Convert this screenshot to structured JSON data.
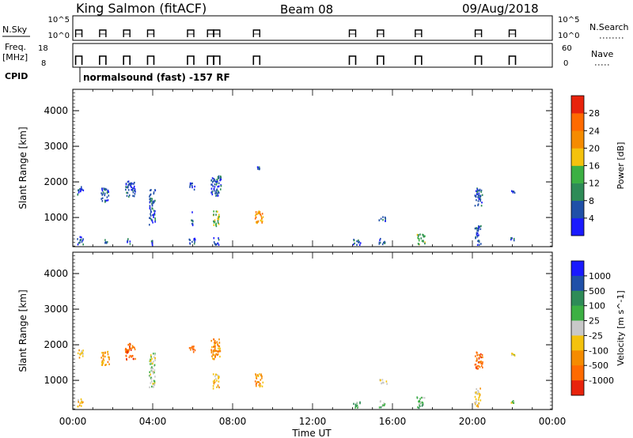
{
  "header": {
    "station": "King Salmon (fitACF)",
    "beam": "Beam 08",
    "date": "09/Aug/2018"
  },
  "sky_panel": {
    "left_label": "N.Sky",
    "left_ticks": [
      "10^5",
      "10^0"
    ],
    "right_label": "N.Search",
    "right_ticks": [
      "10^5",
      "10^0"
    ],
    "bursts_hours": [
      0.3,
      1.5,
      2.7,
      3.9,
      5.9,
      6.9,
      7.2,
      9.2,
      14.0,
      15.4,
      17.3,
      20.3,
      22.0
    ]
  },
  "freq_panel": {
    "left_label_1": "Freq.",
    "left_label_2": "[MHz]",
    "left_ticks": [
      "18",
      "8"
    ],
    "right_label": "Nave",
    "right_ticks": [
      "60",
      "0"
    ]
  },
  "cpid": {
    "label": "CPID",
    "text": "normalsound (fast) -157 RF"
  },
  "time_axis": {
    "label": "Time UT",
    "ticks": [
      "00:00",
      "04:00",
      "08:00",
      "12:00",
      "16:00",
      "20:00",
      "00:00"
    ],
    "range_hours": [
      0,
      24
    ]
  },
  "chart_data": [
    {
      "type": "heatmap",
      "title": "",
      "xlabel": "Time UT",
      "ylabel": "Slant Range [km]",
      "xlim_hours": [
        0,
        24
      ],
      "ylim_km": [
        180,
        4600
      ],
      "yticks": [
        "1000",
        "2000",
        "3000",
        "4000"
      ],
      "colorbar": {
        "label": "Power [dB]",
        "ticks": [
          "4",
          "8",
          "12",
          "16",
          "20",
          "24",
          "28"
        ],
        "colors": [
          "#1a1aff",
          "#2050a8",
          "#2e8b57",
          "#3cb043",
          "#f4c20d",
          "#f58b00",
          "#ff6a00",
          "#e8230c"
        ]
      },
      "clusters": [
        {
          "t0": 0.2,
          "t1": 0.5,
          "r0": 1650,
          "r1": 1900,
          "level": 1
        },
        {
          "t0": 0.2,
          "t1": 0.5,
          "r0": 250,
          "r1": 500,
          "level": 1
        },
        {
          "t0": 1.4,
          "t1": 1.8,
          "r0": 1450,
          "r1": 1850,
          "level": 1
        },
        {
          "t0": 1.5,
          "t1": 1.7,
          "r0": 300,
          "r1": 400,
          "level": 1
        },
        {
          "t0": 2.6,
          "t1": 3.1,
          "r0": 1600,
          "r1": 2050,
          "level": 1
        },
        {
          "t0": 2.7,
          "t1": 2.9,
          "r0": 280,
          "r1": 420,
          "level": 1
        },
        {
          "t0": 3.8,
          "t1": 4.1,
          "r0": 800,
          "r1": 1800,
          "level": 1
        },
        {
          "t0": 3.8,
          "t1": 4.0,
          "r0": 250,
          "r1": 400,
          "level": 1
        },
        {
          "t0": 5.8,
          "t1": 6.1,
          "r0": 1800,
          "r1": 2000,
          "level": 1
        },
        {
          "t0": 5.9,
          "t1": 6.0,
          "r0": 800,
          "r1": 1200,
          "level": 1
        },
        {
          "t0": 5.8,
          "t1": 6.1,
          "r0": 250,
          "r1": 450,
          "level": 1
        },
        {
          "t0": 6.9,
          "t1": 7.4,
          "r0": 1600,
          "r1": 2200,
          "level": 1
        },
        {
          "t0": 7.0,
          "t1": 7.3,
          "r0": 780,
          "r1": 1200,
          "level": 3
        },
        {
          "t0": 7.0,
          "t1": 7.3,
          "r0": 250,
          "r1": 450,
          "level": 1
        },
        {
          "t0": 9.1,
          "t1": 9.5,
          "r0": 850,
          "r1": 1200,
          "level": 5
        },
        {
          "t0": 9.2,
          "t1": 9.4,
          "r0": 2380,
          "r1": 2450,
          "level": 1
        },
        {
          "t0": 14.0,
          "t1": 14.4,
          "r0": 250,
          "r1": 420,
          "level": 1
        },
        {
          "t0": 15.3,
          "t1": 15.7,
          "r0": 920,
          "r1": 1050,
          "level": 1
        },
        {
          "t0": 15.3,
          "t1": 15.6,
          "r0": 250,
          "r1": 450,
          "level": 1
        },
        {
          "t0": 17.2,
          "t1": 17.6,
          "r0": 250,
          "r1": 550,
          "level": 3
        },
        {
          "t0": 20.1,
          "t1": 20.5,
          "r0": 1350,
          "r1": 1850,
          "level": 1
        },
        {
          "t0": 20.1,
          "t1": 20.4,
          "r0": 250,
          "r1": 800,
          "level": 1
        },
        {
          "t0": 21.9,
          "t1": 22.1,
          "r0": 380,
          "r1": 450,
          "level": 1
        },
        {
          "t0": 21.9,
          "t1": 22.1,
          "r0": 1720,
          "r1": 1800,
          "level": 1
        }
      ]
    },
    {
      "type": "heatmap",
      "title": "",
      "xlabel": "Time UT",
      "ylabel": "Slant Range [km]",
      "xlim_hours": [
        0,
        24
      ],
      "ylim_km": [
        180,
        4600
      ],
      "yticks": [
        "1000",
        "2000",
        "3000",
        "4000"
      ],
      "colorbar": {
        "label": "Velocity [m s^-1]",
        "ticks": [
          "1000",
          "500",
          "100",
          "25",
          "-25",
          "-100",
          "-500",
          "-1000"
        ],
        "colors": [
          "#1a1aff",
          "#2050a8",
          "#2e8b57",
          "#3cb043",
          "#c8c8c8",
          "#f4c20d",
          "#f58b00",
          "#ff6a00",
          "#e8230c"
        ]
      },
      "clusters": [
        {
          "t0": 0.2,
          "t1": 0.5,
          "r0": 1650,
          "r1": 1900,
          "level": 5
        },
        {
          "t0": 0.2,
          "t1": 0.5,
          "r0": 250,
          "r1": 500,
          "level": 5
        },
        {
          "t0": 1.4,
          "t1": 1.8,
          "r0": 1450,
          "r1": 1850,
          "level": 6
        },
        {
          "t0": 2.6,
          "t1": 3.1,
          "r0": 1600,
          "r1": 2050,
          "level": 7
        },
        {
          "t0": 3.8,
          "t1": 4.1,
          "r0": 800,
          "r1": 1800,
          "level": 4
        },
        {
          "t0": 5.8,
          "t1": 6.1,
          "r0": 1800,
          "r1": 2000,
          "level": 7
        },
        {
          "t0": 6.9,
          "t1": 7.4,
          "r0": 1600,
          "r1": 2200,
          "level": 6
        },
        {
          "t0": 7.0,
          "t1": 7.3,
          "r0": 780,
          "r1": 1200,
          "level": 5
        },
        {
          "t0": 9.1,
          "t1": 9.5,
          "r0": 850,
          "r1": 1200,
          "level": 6
        },
        {
          "t0": 14.0,
          "t1": 14.4,
          "r0": 250,
          "r1": 420,
          "level": 3
        },
        {
          "t0": 15.3,
          "t1": 15.7,
          "r0": 920,
          "r1": 1050,
          "level": 4
        },
        {
          "t0": 15.3,
          "t1": 15.6,
          "r0": 250,
          "r1": 450,
          "level": 3
        },
        {
          "t0": 17.2,
          "t1": 17.6,
          "r0": 250,
          "r1": 550,
          "level": 3
        },
        {
          "t0": 20.1,
          "t1": 20.5,
          "r0": 1350,
          "r1": 1850,
          "level": 7
        },
        {
          "t0": 20.1,
          "t1": 20.4,
          "r0": 250,
          "r1": 800,
          "level": 5
        },
        {
          "t0": 21.9,
          "t1": 22.1,
          "r0": 380,
          "r1": 450,
          "level": 4
        },
        {
          "t0": 21.9,
          "t1": 22.1,
          "r0": 1720,
          "r1": 1800,
          "level": 4
        }
      ]
    }
  ]
}
